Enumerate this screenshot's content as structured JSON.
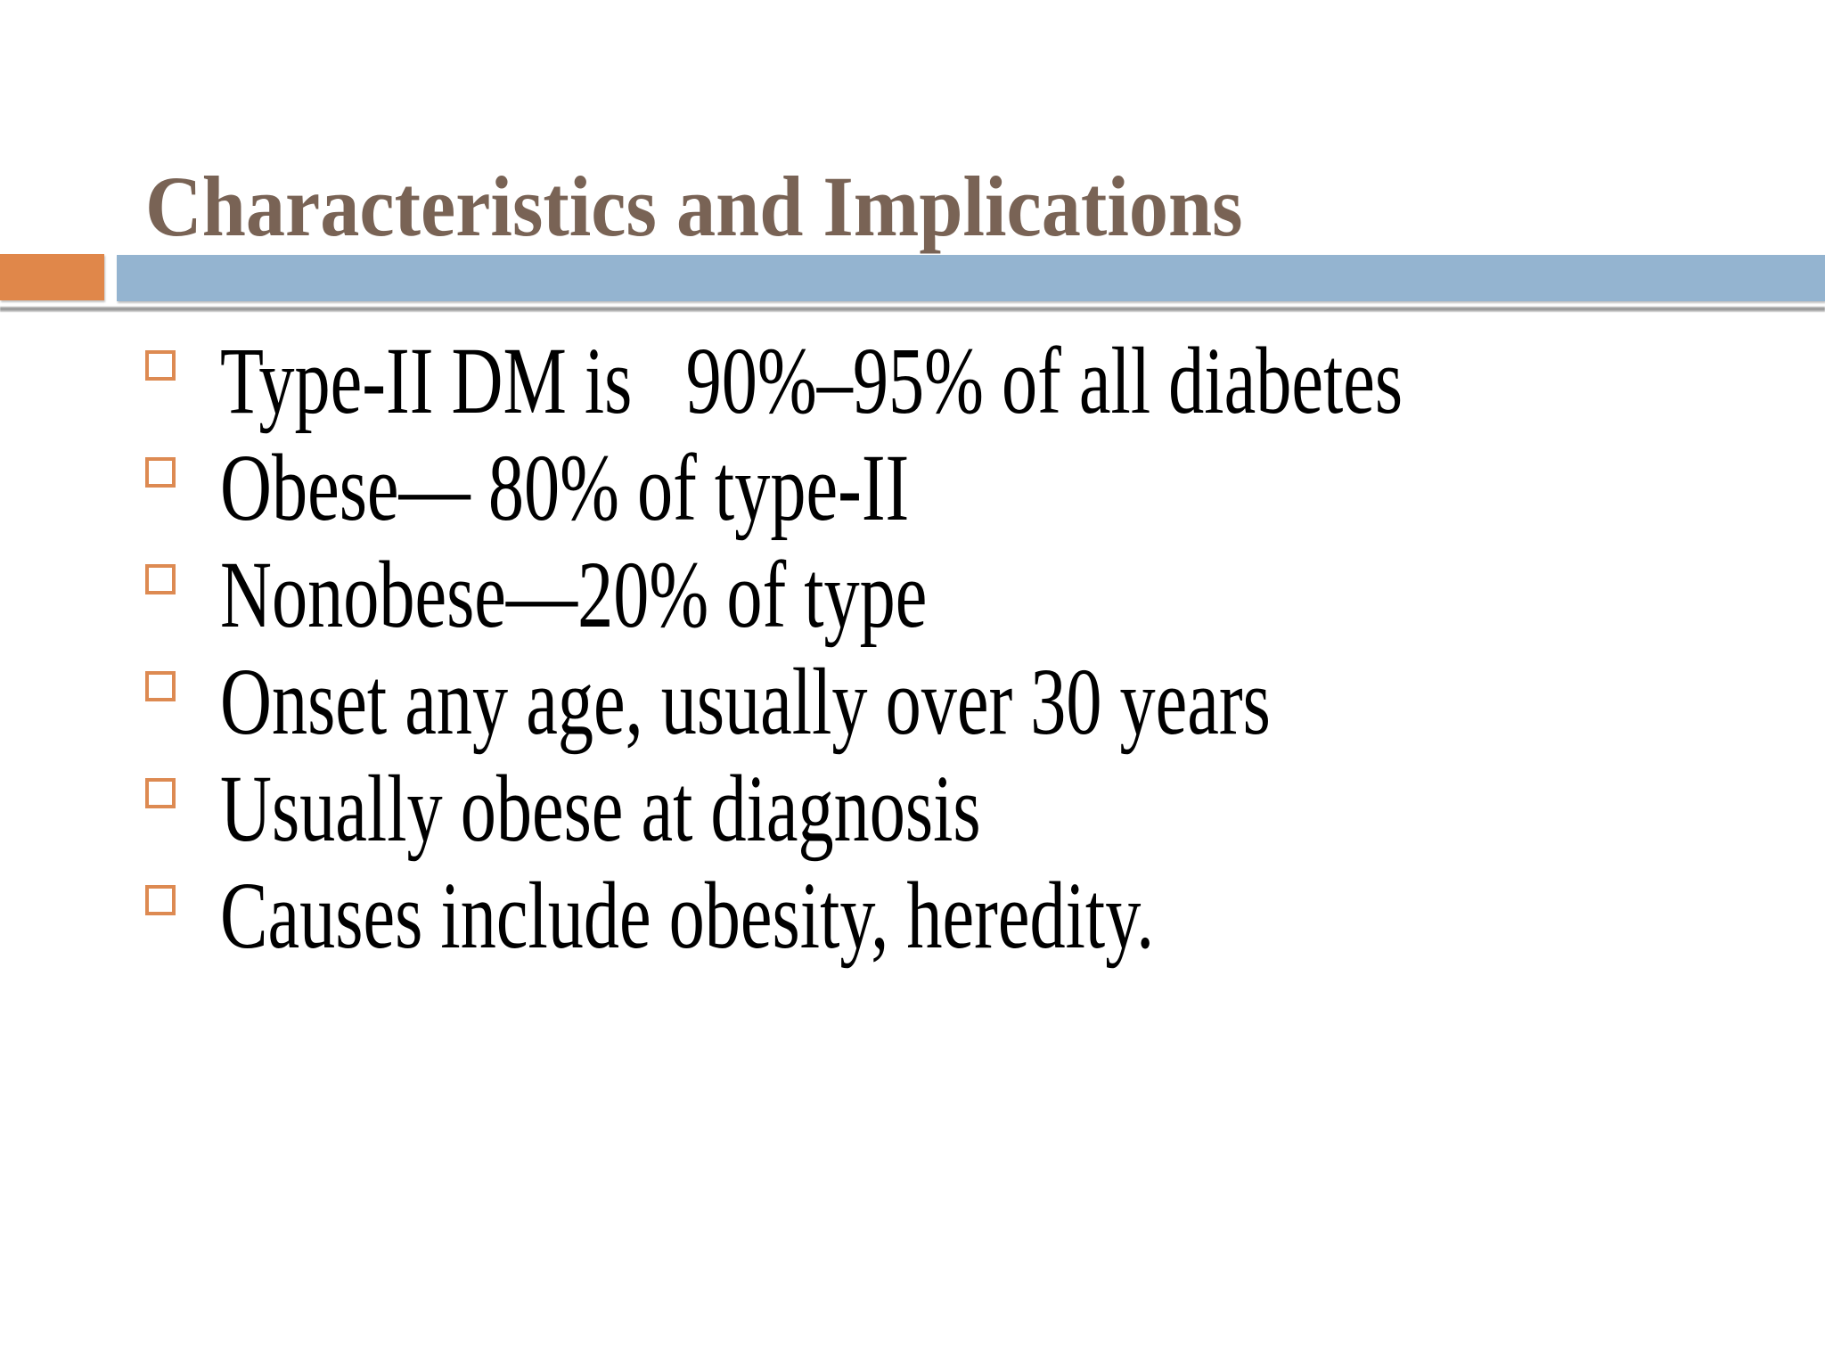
{
  "slide": {
    "title": "Characteristics and Implications",
    "bullets": [
      "Type-II DM is   90%–95% of all diabetes",
      "Obese— 80% of type-II",
      "Nonobese—20% of type",
      "Onset any age, usually over 30 years",
      "Usually obese at diagnosis",
      "Causes include obesity, heredity."
    ],
    "colors": {
      "title": "#796355",
      "accent_orange": "#E0874A",
      "accent_blue": "#94B4D0",
      "bullet_square": "#DD8A52",
      "divider": "#8F8F8F"
    }
  }
}
